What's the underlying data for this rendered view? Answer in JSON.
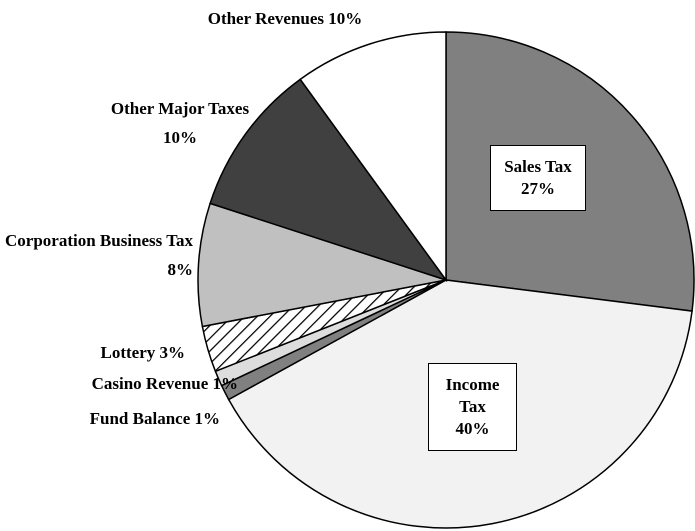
{
  "chart_data": {
    "type": "pie",
    "categories": [
      "Sales Tax",
      "Income Tax",
      "Fund Balance",
      "Casino Revenue",
      "Lottery",
      "Corporation Business Tax",
      "Other Major Taxes",
      "Other Revenues"
    ],
    "values": [
      27,
      40,
      1,
      1,
      3,
      8,
      10,
      10
    ],
    "value_labels": [
      "27%",
      "40%",
      "1%",
      "1%",
      "3%",
      "8%",
      "10%",
      "10%"
    ],
    "colors": [
      "#808080",
      "#f2f2f2",
      "#808080",
      "#dddddd",
      "#ffffff",
      "#c0c0c0",
      "#404040",
      "#ffffff"
    ],
    "hatched": [
      4
    ]
  }
}
